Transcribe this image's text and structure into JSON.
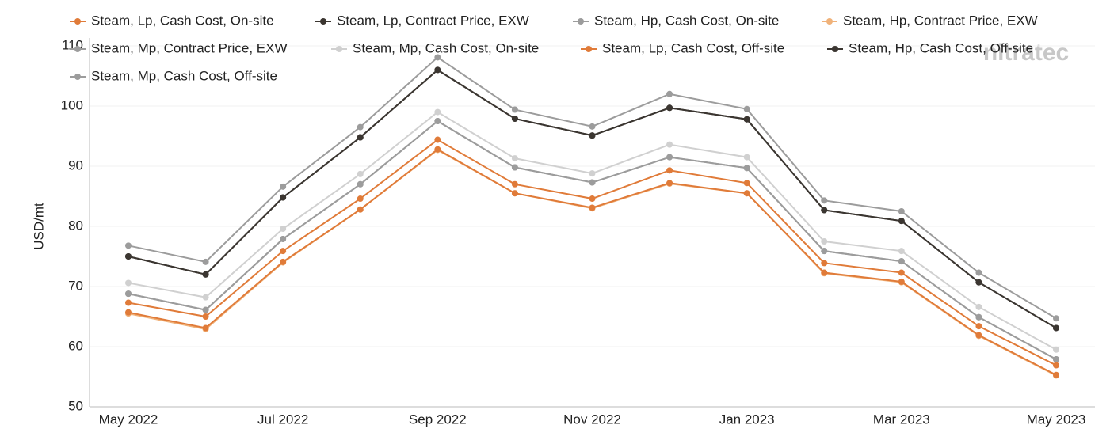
{
  "chart_data": {
    "type": "line",
    "y_label": "USD/mt",
    "watermark": "nitratec",
    "categories": [
      "May 2022",
      null,
      "Jul 2022",
      null,
      "Sep 2022",
      null,
      "Nov 2022",
      null,
      "Jan 2023",
      null,
      "Mar 2023",
      null,
      "May 2023"
    ],
    "ylim": [
      50,
      110
    ],
    "yticks": [
      50,
      60,
      70,
      80,
      90,
      100,
      110
    ],
    "grid": true,
    "series": [
      {
        "name": "Steam, Lp, Cash Cost, On-site",
        "color": "#e07b39",
        "values": [
          67.3,
          65.0,
          75.9,
          84.6,
          94.4,
          87.0,
          84.6,
          89.3,
          87.2,
          73.9,
          72.3,
          63.4,
          56.9
        ]
      },
      {
        "name": "Steam, Lp, Contract Price, EXW",
        "color": "#3b3631",
        "values": [
          75.0,
          72.0,
          84.8,
          94.8,
          106.0,
          97.9,
          95.1,
          99.7,
          97.8,
          82.7,
          80.9,
          70.7,
          63.1
        ]
      },
      {
        "name": "Steam, Hp, Cash Cost, On-site",
        "color": "#9c9c9c",
        "values": [
          76.8,
          74.1,
          86.6,
          96.5,
          108.1,
          99.4,
          96.6,
          102.0,
          99.5,
          84.3,
          82.5,
          72.3,
          64.7
        ]
      },
      {
        "name": "Steam, Hp, Contract Price, EXW",
        "color": "#f0b27a",
        "values": [
          65.5,
          62.9,
          74.0,
          82.8,
          92.7,
          85.5,
          83.0,
          87.1,
          85.5,
          72.2,
          70.7,
          61.8,
          55.2
        ]
      },
      {
        "name": "Steam, Mp, Contract Price, EXW",
        "color": "#9c9c9c",
        "values": [
          68.8,
          66.1,
          77.9,
          87.0,
          97.5,
          89.8,
          87.3,
          91.5,
          89.7,
          75.9,
          74.2,
          64.9,
          57.9
        ]
      },
      {
        "name": "Steam, Mp, Cash Cost, On-site",
        "color": "#d0d0d0",
        "values": [
          70.6,
          68.2,
          79.6,
          88.7,
          99.0,
          91.3,
          88.8,
          93.6,
          91.5,
          77.5,
          75.9,
          66.6,
          59.5
        ]
      },
      {
        "name": "Steam, Lp, Cash Cost, Off-site",
        "color": "#e07b39",
        "values": [
          65.7,
          63.1,
          74.1,
          82.8,
          92.8,
          85.5,
          83.1,
          87.2,
          85.5,
          72.3,
          70.8,
          61.9,
          55.3
        ]
      },
      {
        "name": "Steam, Hp, Cash Cost, Off-site",
        "color": "#3b3631",
        "values": [
          75.0,
          72.0,
          84.8,
          94.8,
          106.0,
          97.9,
          95.1,
          99.7,
          97.8,
          82.7,
          80.9,
          70.7,
          63.1
        ]
      },
      {
        "name": "Steam, Mp, Cash Cost, Off-site",
        "color": "#9c9c9c",
        "values": [
          68.8,
          66.1,
          77.9,
          87.0,
          97.5,
          89.8,
          87.3,
          91.5,
          89.7,
          75.9,
          74.2,
          64.9,
          57.9
        ]
      }
    ]
  }
}
